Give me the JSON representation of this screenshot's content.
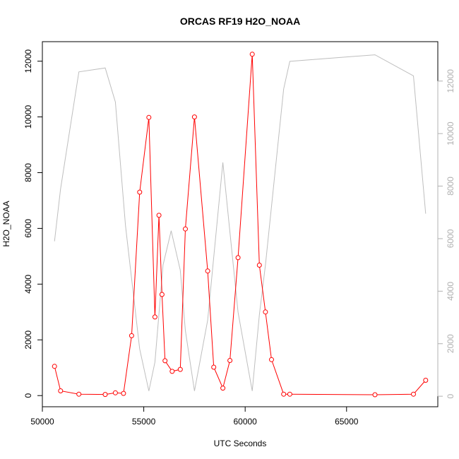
{
  "chart_data": {
    "type": "line",
    "title": "ORCAS RF19 H2O_NOAA",
    "xlabel": "UTC Seconds",
    "ylabel": "H2O_NOAA",
    "xlim": [
      50000,
      69500
    ],
    "ylim": [
      -400,
      12700
    ],
    "y2lim": [
      -400,
      13500
    ],
    "x_ticks": [
      50000,
      55000,
      60000,
      65000
    ],
    "y_ticks": [
      0,
      2000,
      4000,
      6000,
      8000,
      10000,
      12000
    ],
    "y2_ticks": [
      0,
      2000,
      4000,
      6000,
      8000,
      10000,
      12000
    ],
    "x_tick_labels": [
      "50000",
      "55000",
      "60000",
      "65000"
    ],
    "y_tick_labels": [
      "0",
      "2000",
      "4000",
      "6000",
      "8000",
      "10000",
      "12000"
    ],
    "y2_tick_labels": [
      "0",
      "2000",
      "4000",
      "6000",
      "8000",
      "10000",
      "12000"
    ],
    "grid": false,
    "colors": {
      "primary": "#ff0000",
      "secondary": "#bebebe",
      "axis": "#000000",
      "secondary_axis": "#b0b0b0"
    },
    "series": [
      {
        "axis": "left",
        "style": "line+points",
        "x": [
          50600,
          50900,
          51800,
          53100,
          53600,
          54000,
          54400,
          54800,
          55250,
          55550,
          55750,
          55900,
          56050,
          56400,
          56800,
          57050,
          57500,
          58150,
          58450,
          58900,
          59250,
          59650,
          60350,
          60700,
          61000,
          61300,
          61900,
          62200,
          66400,
          68300,
          68900
        ],
        "y": [
          1050,
          170,
          50,
          40,
          100,
          80,
          2150,
          7300,
          9980,
          2820,
          6470,
          3630,
          1250,
          870,
          940,
          5980,
          10000,
          4470,
          1020,
          270,
          1260,
          4950,
          12250,
          4680,
          3000,
          1290,
          50,
          50,
          30,
          50,
          550
        ]
      },
      {
        "axis": "right",
        "style": "line",
        "x": [
          50600,
          50900,
          51800,
          53100,
          53600,
          54100,
          54800,
          55250,
          55550,
          55950,
          56350,
          56800,
          57050,
          57500,
          58150,
          58900,
          59650,
          60350,
          60700,
          61000,
          61900,
          62200,
          66400,
          68300,
          68900
        ],
        "y": [
          5900,
          7900,
          12350,
          12500,
          11200,
          6500,
          1800,
          200,
          1300,
          5000,
          6300,
          4800,
          2500,
          200,
          2900,
          8900,
          3200,
          200,
          3100,
          5000,
          11700,
          12750,
          13000,
          12200,
          6950
        ]
      }
    ]
  }
}
